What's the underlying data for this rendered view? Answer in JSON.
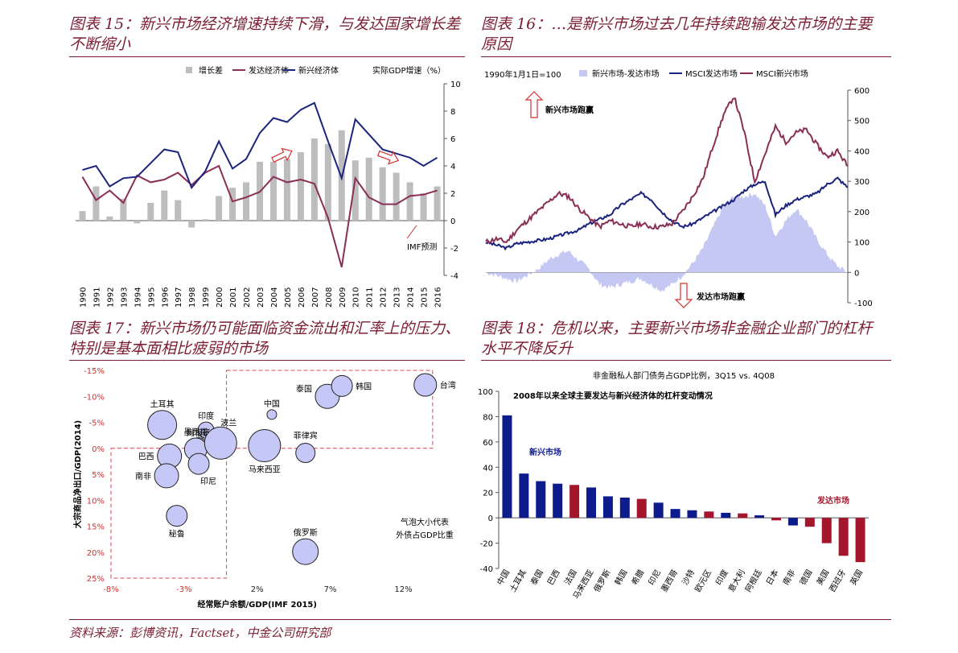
{
  "footer": "资料来源：彭博资讯，Factset，中金公司研究部",
  "panels": {
    "p15": {
      "title": "图表 15：新兴市场经济增速持续下滑，与发达国家增长差不断缩小"
    },
    "p16": {
      "title": "图表 16：…是新兴市场过去几年持续跑输发达市场的主要原因"
    },
    "p17": {
      "title": "图表 17：新兴市场仍可能面临资金流出和汇率上的压力、特别是基本面相比疲弱的市场"
    },
    "p18": {
      "title": "图表 18：危机以来，主要新兴市场非金融企业部门的杠杆水平不降反升"
    }
  },
  "chart_data": [
    {
      "id": "p15",
      "type": "bar",
      "ylabel": "实际GDP增速（%）",
      "ylim": [
        -4,
        10
      ],
      "categories": [
        "1990",
        "1991",
        "1992",
        "1993",
        "1994",
        "1995",
        "1996",
        "1997",
        "1998",
        "1999",
        "2000",
        "2001",
        "2002",
        "2003",
        "2004",
        "2005",
        "2006",
        "2007",
        "2008",
        "2009",
        "2010",
        "2011",
        "2012",
        "2013",
        "2014",
        "2015",
        "2016"
      ],
      "series": [
        {
          "name": "增长差",
          "kind": "bar",
          "color": "#bdbdbd",
          "values": [
            0.7,
            2.5,
            0.3,
            1.6,
            -0.2,
            1.3,
            2.2,
            1.5,
            -0.5,
            0.1,
            1.8,
            2.4,
            2.8,
            4.3,
            4.3,
            4.5,
            5.0,
            6.0,
            5.6,
            6.6,
            4.4,
            4.6,
            3.9,
            3.5,
            2.8,
            2.0,
            2.5
          ]
        },
        {
          "name": "发达经济体",
          "kind": "line",
          "color": "#8b2e55",
          "values": [
            3.2,
            1.5,
            2.2,
            1.3,
            3.3,
            2.8,
            3.0,
            3.5,
            2.6,
            3.5,
            4.0,
            1.4,
            1.7,
            2.1,
            3.2,
            2.8,
            3.0,
            2.7,
            0.2,
            -3.4,
            3.1,
            1.7,
            1.2,
            1.2,
            1.8,
            1.9,
            2.2
          ]
        },
        {
          "name": "新兴经济体",
          "kind": "line",
          "color": "#1a237e",
          "values": [
            3.7,
            4.0,
            2.5,
            3.1,
            3.2,
            4.2,
            5.2,
            5.0,
            2.4,
            3.6,
            5.8,
            3.8,
            4.5,
            6.4,
            7.5,
            7.2,
            8.1,
            8.6,
            5.8,
            3.1,
            7.4,
            6.3,
            5.2,
            4.9,
            4.6,
            4.0,
            4.6
          ]
        }
      ],
      "annotations": [
        "IMF预测"
      ]
    },
    {
      "id": "p16",
      "type": "line",
      "label_top": "1990年1月1日=100",
      "ylim": [
        -100,
        600
      ],
      "yticks": [
        -100,
        0,
        100,
        200,
        300,
        400,
        500,
        600
      ],
      "series": [
        {
          "name": "新兴市场-发达市场",
          "kind": "area",
          "color": "#c5c8f2",
          "values": [
            0,
            -10,
            -20,
            -30,
            -10,
            10,
            40,
            60,
            70,
            40,
            10,
            -40,
            -50,
            -40,
            -30,
            -20,
            -40,
            -60,
            -40,
            -10,
            30,
            80,
            150,
            220,
            250,
            250,
            260,
            220,
            120,
            170,
            210,
            170,
            110,
            60,
            20,
            0
          ]
        },
        {
          "name": "MSCI发达市场",
          "kind": "line",
          "color": "#1a237e",
          "values": [
            100,
            90,
            80,
            95,
            100,
            105,
            110,
            120,
            130,
            140,
            160,
            175,
            190,
            220,
            240,
            260,
            240,
            200,
            170,
            150,
            160,
            180,
            200,
            220,
            240,
            270,
            290,
            300,
            190,
            220,
            240,
            250,
            260,
            290,
            310,
            280
          ]
        },
        {
          "name": "MSCI新兴市场",
          "kind": "line",
          "color": "#8b2e55",
          "values": [
            100,
            110,
            100,
            140,
            170,
            200,
            230,
            260,
            250,
            210,
            180,
            150,
            170,
            160,
            150,
            160,
            150,
            150,
            160,
            200,
            250,
            310,
            420,
            520,
            580,
            460,
            300,
            390,
            480,
            430,
            460,
            470,
            420,
            380,
            400,
            350
          ]
        }
      ],
      "annotations": [
        "新兴市场跑赢",
        "发达市场跑赢"
      ]
    },
    {
      "id": "p17",
      "type": "scatter",
      "xlabel": "经常账户余额/GDP(IMF 2015)",
      "ylabel": "大宗商品净出口/GDP(2014)",
      "xticks": [
        "-8%",
        "-3%",
        "2%",
        "7%",
        "12%"
      ],
      "xlim": [
        -8,
        15
      ],
      "yticks": [
        "-15%",
        "-10%",
        "-5%",
        "0%",
        "5%",
        "10%",
        "15%",
        "20%",
        "25%"
      ],
      "ylim": [
        -15,
        25
      ],
      "note": "气泡大小代表外债占GDP比重",
      "points": [
        {
          "name": "土耳其",
          "x": -4.5,
          "y": -4.5,
          "r": 18
        },
        {
          "name": "印度",
          "x": -1.5,
          "y": -3.5,
          "r": 10
        },
        {
          "name": "阿根廷",
          "x": -2.0,
          "y": -0.5,
          "r": 10
        },
        {
          "name": "墨西哥",
          "x": -2.2,
          "y": 0.2,
          "r": 14
        },
        {
          "name": "波兰",
          "x": -0.5,
          "y": -1.0,
          "r": 20
        },
        {
          "name": "巴西",
          "x": -4.0,
          "y": 1.5,
          "r": 15
        },
        {
          "name": "南非",
          "x": -4.2,
          "y": 5.3,
          "r": 15
        },
        {
          "name": "印尼",
          "x": -2.0,
          "y": 3.0,
          "r": 13
        },
        {
          "name": "秘鲁",
          "x": -3.5,
          "y": 13.0,
          "r": 13
        },
        {
          "name": "中国",
          "x": 3.0,
          "y": -6.5,
          "r": 6
        },
        {
          "name": "马来西亚",
          "x": 2.5,
          "y": -0.5,
          "r": 20
        },
        {
          "name": "菲律宾",
          "x": 5.3,
          "y": 0.9,
          "r": 12
        },
        {
          "name": "泰国",
          "x": 6.8,
          "y": -10.0,
          "r": 15
        },
        {
          "name": "韩国",
          "x": 7.8,
          "y": -12.0,
          "r": 13
        },
        {
          "name": "台湾",
          "x": 13.5,
          "y": -12.2,
          "r": 14
        },
        {
          "name": "俄罗斯",
          "x": 5.3,
          "y": 19.9,
          "r": 16
        }
      ]
    },
    {
      "id": "p18",
      "type": "bar",
      "title": "非金融私人部门债务占GDP比例，3Q15 vs. 4Q08",
      "subtitle": "2008年以来全球主要发达与新兴经济体的杠杆变动情况",
      "ylim": [
        -40,
        100
      ],
      "yticks": [
        -40,
        -20,
        0,
        20,
        40,
        60,
        80,
        100
      ],
      "group_labels": {
        "emerging": "新兴市场",
        "developed": "发达市场"
      },
      "colors": {
        "emerging": "#0d1b8c",
        "developed": "#a3162c"
      },
      "categories": [
        "中国",
        "土耳其",
        "泰国",
        "巴西",
        "法国",
        "马来西亚",
        "俄罗斯",
        "韩国",
        "希腊",
        "印尼",
        "墨西哥",
        "沙特",
        "欧元区",
        "印度",
        "意大利",
        "阿根廷",
        "日本",
        "南非",
        "德国",
        "美国",
        "西班牙",
        "英国"
      ],
      "values": [
        81,
        35,
        29,
        27,
        26,
        24,
        17,
        16,
        15,
        12,
        7,
        6,
        5,
        4,
        3.5,
        2,
        -2,
        -6,
        -7,
        -20,
        -30,
        -35
      ],
      "groups": [
        "e",
        "e",
        "e",
        "e",
        "d",
        "e",
        "e",
        "e",
        "d",
        "e",
        "e",
        "e",
        "d",
        "e",
        "d",
        "e",
        "d",
        "e",
        "d",
        "d",
        "d",
        "d"
      ]
    }
  ]
}
